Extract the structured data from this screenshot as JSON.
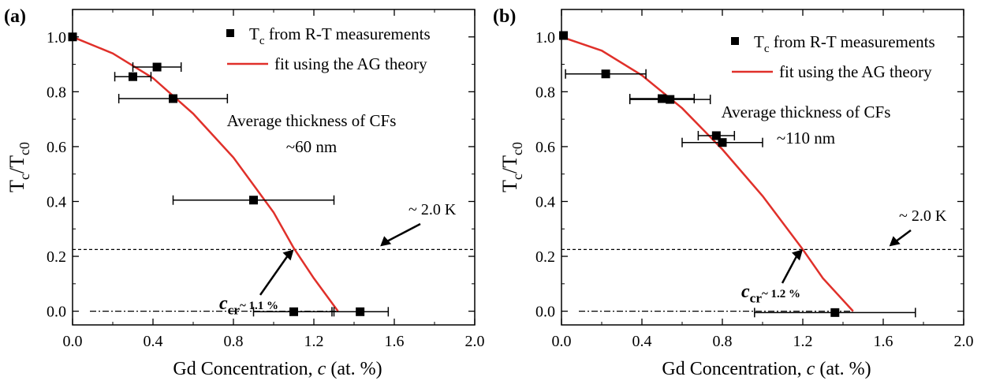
{
  "chart_data": [
    {
      "panel_label": "(a)",
      "type": "scatter",
      "xlabel": "Gd Concentration, c (at. %)",
      "ylabel": "Tc/Tc0",
      "xlim": [
        0.0,
        2.0
      ],
      "ylim": [
        -0.05,
        1.1
      ],
      "xticks": [
        "0.0",
        "0.4",
        "0.8",
        "1.2",
        "1.6",
        "2.0"
      ],
      "yticks": [
        "0.0",
        "0.2",
        "0.4",
        "0.6",
        "0.8",
        "1.0"
      ],
      "grid": false,
      "legend_position": "top-right",
      "legend": {
        "markers_label": "T_c from R-T measurements",
        "fit_label": "fit using the AG theory"
      },
      "annotation": {
        "line1": "Average thickness of CFs",
        "line2": "~60 nm"
      },
      "dashed_line": {
        "y": 0.225,
        "label": "~ 2.0 K"
      },
      "critical_label": "c_cr~ 1.1 %",
      "critical_point": {
        "x": 1.1,
        "y": 0.225
      },
      "series": [
        {
          "name": "T_c from R-T measurements",
          "points": [
            {
              "x": 0.0,
              "y": 1.0,
              "xerr": 0.0
            },
            {
              "x": 0.3,
              "y": 0.855,
              "xerr": 0.09
            },
            {
              "x": 0.42,
              "y": 0.89,
              "xerr": 0.12
            },
            {
              "x": 0.5,
              "y": 0.775,
              "xerr": 0.27
            },
            {
              "x": 0.9,
              "y": 0.405,
              "xerr": 0.4
            },
            {
              "x": 1.1,
              "y": -0.002,
              "xerr": 0.2
            },
            {
              "x": 1.43,
              "y": -0.002,
              "xerr": 0.14
            }
          ]
        },
        {
          "name": "fit using the AG theory",
          "curve": [
            [
              0.0,
              1.0
            ],
            [
              0.2,
              0.94
            ],
            [
              0.4,
              0.85
            ],
            [
              0.6,
              0.72
            ],
            [
              0.8,
              0.56
            ],
            [
              1.0,
              0.36
            ],
            [
              1.1,
              0.23
            ],
            [
              1.2,
              0.12
            ],
            [
              1.32,
              0.0
            ]
          ]
        }
      ],
      "baseline_segment": {
        "y": 0.0,
        "x_from": 0.0,
        "x_to": 1.32
      }
    },
    {
      "panel_label": "(b)",
      "type": "scatter",
      "xlabel": "Gd Concentration, c (at. %)",
      "ylabel": "Tc/Tc0",
      "xlim": [
        0.0,
        2.0
      ],
      "ylim": [
        -0.05,
        1.1
      ],
      "xticks": [
        "0.0",
        "0.4",
        "0.8",
        "1.2",
        "1.6",
        "2.0"
      ],
      "yticks": [
        "0.0",
        "0.2",
        "0.4",
        "0.6",
        "0.8",
        "1.0"
      ],
      "grid": false,
      "legend_position": "top-right",
      "legend": {
        "markers_label": "T_c from R-T measurements",
        "fit_label": "fit using the AG theory"
      },
      "annotation": {
        "line1": "Average thickness of CFs",
        "line2": "~110 nm"
      },
      "dashed_line": {
        "y": 0.225,
        "label": "~ 2.0 K"
      },
      "critical_label": "c_cr~ 1.2 %",
      "critical_point": {
        "x": 1.2,
        "y": 0.225
      },
      "series": [
        {
          "name": "T_c from R-T measurements",
          "points": [
            {
              "x": 0.01,
              "y": 1.005,
              "xerr": 0.0
            },
            {
              "x": 0.22,
              "y": 0.865,
              "xerr": 0.2
            },
            {
              "x": 0.5,
              "y": 0.775,
              "xerr": 0.16
            },
            {
              "x": 0.54,
              "y": 0.772,
              "xerr": 0.2
            },
            {
              "x": 0.77,
              "y": 0.64,
              "xerr": 0.09
            },
            {
              "x": 0.8,
              "y": 0.615,
              "xerr": 0.2
            },
            {
              "x": 1.36,
              "y": -0.005,
              "xerr": 0.4
            }
          ]
        },
        {
          "name": "fit using the AG theory",
          "curve": [
            [
              0.0,
              1.0
            ],
            [
              0.2,
              0.95
            ],
            [
              0.4,
              0.86
            ],
            [
              0.6,
              0.74
            ],
            [
              0.8,
              0.59
            ],
            [
              1.0,
              0.42
            ],
            [
              1.2,
              0.225
            ],
            [
              1.3,
              0.12
            ],
            [
              1.45,
              0.0
            ]
          ]
        }
      ],
      "baseline_segment": {
        "y": 0.0,
        "x_from": 0.0,
        "x_to": 1.45
      }
    }
  ],
  "colors": {
    "fit_line": "#e0302a",
    "axes": "#000000",
    "marker": "#000000"
  }
}
